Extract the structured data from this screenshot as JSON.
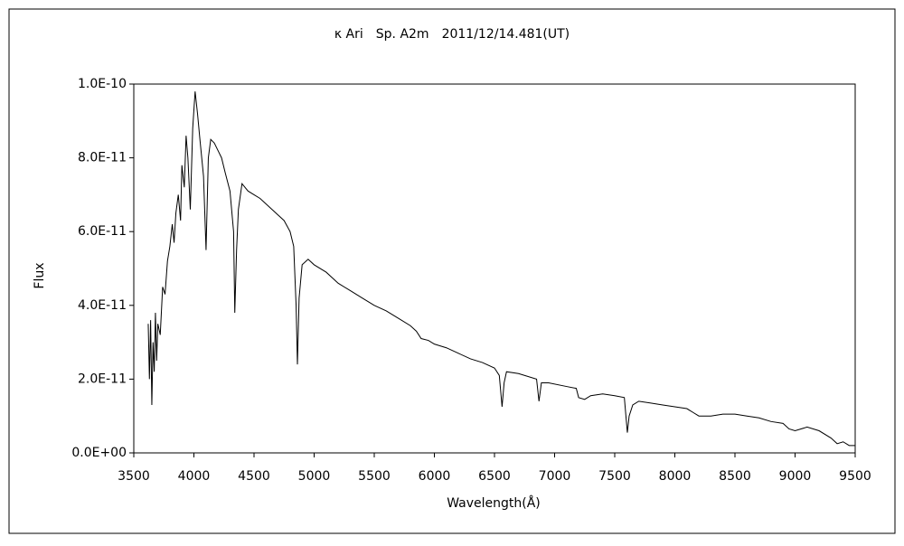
{
  "chart_data": {
    "type": "line",
    "title": "κ Ari　Sp. A2m　2011/12/14.481(UT)",
    "x_label": "Wavelength(Å)",
    "y_label": "Flux",
    "x": [
      3620,
      3630,
      3640,
      3650,
      3660,
      3670,
      3680,
      3690,
      3700,
      3720,
      3740,
      3760,
      3780,
      3800,
      3820,
      3835,
      3850,
      3870,
      3889,
      3900,
      3920,
      3935,
      3950,
      3970,
      3990,
      4010,
      4030,
      4050,
      4080,
      4101,
      4120,
      4140,
      4170,
      4200,
      4230,
      4260,
      4300,
      4330,
      4340,
      4355,
      4370,
      4400,
      4450,
      4500,
      4550,
      4600,
      4650,
      4700,
      4750,
      4800,
      4830,
      4850,
      4861,
      4875,
      4900,
      4950,
      5000,
      5100,
      5200,
      5300,
      5400,
      5500,
      5600,
      5700,
      5800,
      5850,
      5890,
      5950,
      6000,
      6100,
      6200,
      6300,
      6400,
      6500,
      6540,
      6563,
      6580,
      6600,
      6700,
      6850,
      6870,
      6890,
      6950,
      7100,
      7180,
      7200,
      7250,
      7300,
      7400,
      7500,
      7580,
      7605,
      7620,
      7650,
      7700,
      7800,
      7900,
      8000,
      8100,
      8150,
      8200,
      8300,
      8400,
      8500,
      8600,
      8700,
      8800,
      8900,
      8950,
      9000,
      9100,
      9200,
      9300,
      9350,
      9400,
      9450,
      9500
    ],
    "values": [
      3.5e-11,
      2e-11,
      3.6e-11,
      1.3e-11,
      3e-11,
      2.2e-11,
      3.8e-11,
      2.5e-11,
      3.5e-11,
      3.2e-11,
      4.5e-11,
      4.3e-11,
      5.2e-11,
      5.6e-11,
      6.2e-11,
      5.7e-11,
      6.5e-11,
      7e-11,
      6.3e-11,
      7.8e-11,
      7.2e-11,
      8.6e-11,
      8e-11,
      6.6e-11,
      8.8e-11,
      9.8e-11,
      9.2e-11,
      8.5e-11,
      7.5e-11,
      5.5e-11,
      8e-11,
      8.5e-11,
      8.4e-11,
      8.2e-11,
      8e-11,
      7.6e-11,
      7.1e-11,
      6e-11,
      3.8e-11,
      5.5e-11,
      6.6e-11,
      7.3e-11,
      7.1e-11,
      7e-11,
      6.9e-11,
      6.75e-11,
      6.6e-11,
      6.45e-11,
      6.3e-11,
      6e-11,
      5.6e-11,
      4e-11,
      2.4e-11,
      4.2e-11,
      5.1e-11,
      5.25e-11,
      5.1e-11,
      4.9e-11,
      4.6e-11,
      4.4e-11,
      4.2e-11,
      4e-11,
      3.85e-11,
      3.65e-11,
      3.45e-11,
      3.3e-11,
      3.1e-11,
      3.05e-11,
      2.95e-11,
      2.85e-11,
      2.7e-11,
      2.55e-11,
      2.45e-11,
      2.3e-11,
      2.1e-11,
      1.25e-11,
      1.9e-11,
      2.2e-11,
      2.15e-11,
      2e-11,
      1.4e-11,
      1.9e-11,
      1.9e-11,
      1.8e-11,
      1.75e-11,
      1.5e-11,
      1.45e-11,
      1.55e-11,
      1.6e-11,
      1.55e-11,
      1.5e-11,
      5.5e-12,
      1e-11,
      1.3e-11,
      1.4e-11,
      1.35e-11,
      1.3e-11,
      1.25e-11,
      1.2e-11,
      1.1e-11,
      1e-11,
      1e-11,
      1.05e-11,
      1.05e-11,
      1e-11,
      9.5e-12,
      8.5e-12,
      8e-12,
      6.5e-12,
      6e-12,
      7e-12,
      6e-12,
      4e-12,
      2.5e-12,
      3e-12,
      2e-12,
      2e-12
    ],
    "color": "#000000",
    "xlim": [
      3500,
      9500
    ],
    "xticks": [
      3500,
      4000,
      4500,
      5000,
      5500,
      6000,
      6500,
      7000,
      7500,
      8000,
      8500,
      9000,
      9500
    ],
    "ylim": [
      0,
      1e-10
    ],
    "yticks": [
      {
        "value": 0,
        "label": "0.0E+00"
      },
      {
        "value": 2e-11,
        "label": "2.0E-11"
      },
      {
        "value": 4e-11,
        "label": "4.0E-11"
      },
      {
        "value": 6e-11,
        "label": "6.0E-11"
      },
      {
        "value": 8e-11,
        "label": "8.0E-11"
      },
      {
        "value": 1e-10,
        "label": "1.0E-10"
      }
    ]
  }
}
